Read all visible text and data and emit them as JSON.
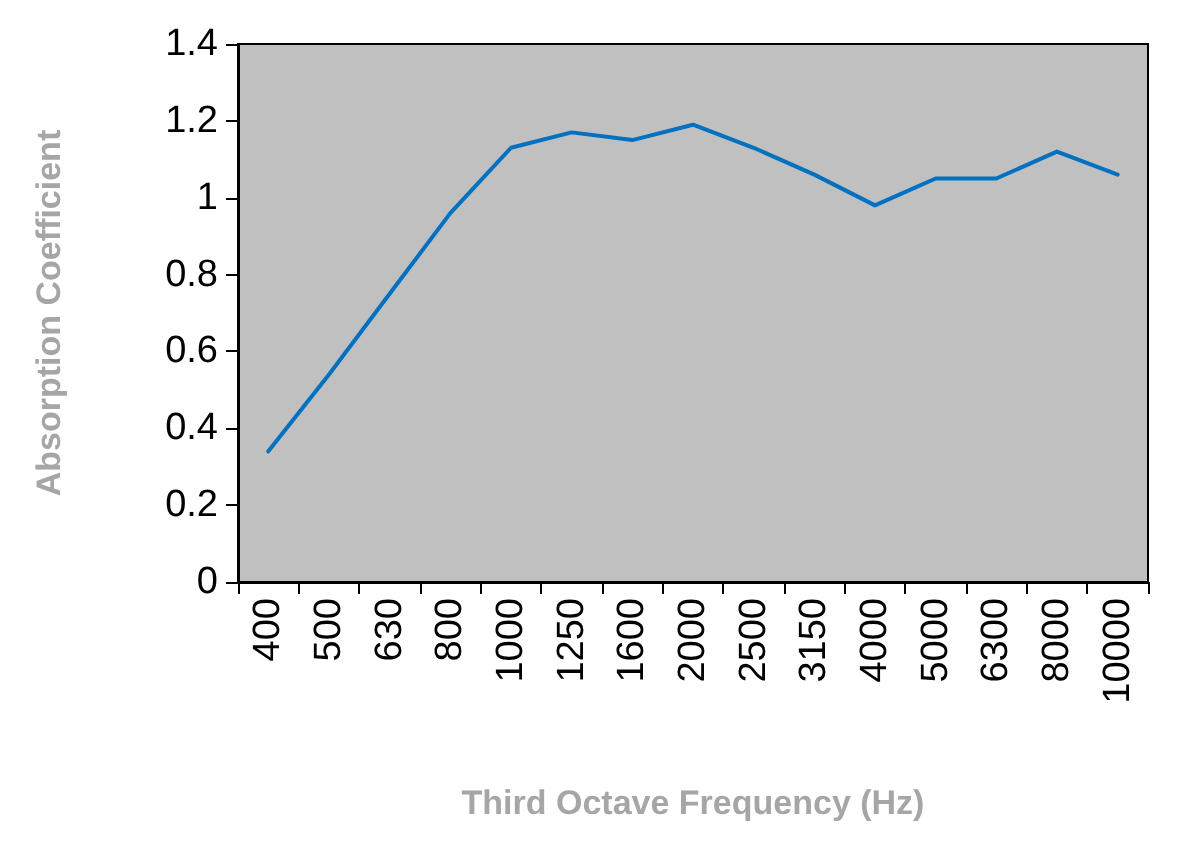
{
  "chart_data": {
    "type": "line",
    "xlabel": "Third Octave Frequency (Hz)",
    "ylabel": "Absorption Coefficient",
    "categories": [
      "400",
      "500",
      "630",
      "800",
      "1000",
      "1250",
      "1600",
      "2000",
      "2500",
      "3150",
      "4000",
      "5000",
      "6300",
      "8000",
      "10000"
    ],
    "series": [
      {
        "color": "#0070c0",
        "values": [
          0.34,
          0.54,
          0.75,
          0.96,
          1.13,
          1.17,
          1.15,
          1.19,
          1.13,
          1.06,
          0.98,
          1.05,
          1.05,
          1.12,
          1.06
        ]
      }
    ],
    "ylim": [
      0,
      1.4
    ],
    "yticks": [
      0,
      0.2,
      0.4,
      0.6,
      0.8,
      1,
      1.2,
      1.4
    ],
    "grid": false,
    "marker": "none",
    "line_style": "solid"
  }
}
